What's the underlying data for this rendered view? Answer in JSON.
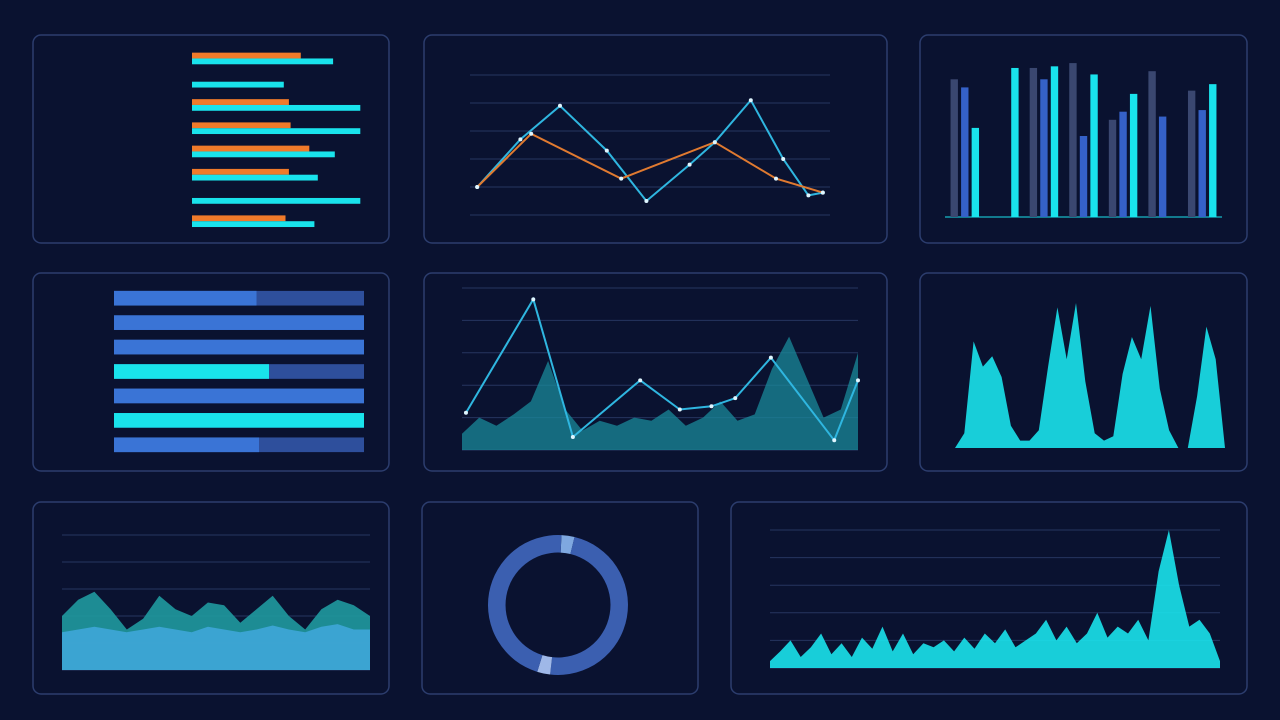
{
  "chart_data": [
    {
      "type": "bar",
      "horizontal": true,
      "xlim": [
        0,
        100
      ],
      "series": [
        {
          "color": "#f07a2a",
          "values": [
            64,
            0,
            57,
            58,
            69,
            57,
            0,
            55
          ]
        },
        {
          "color": "#19e3ec",
          "values": [
            83,
            54,
            99,
            99,
            84,
            74,
            99,
            72
          ]
        }
      ]
    },
    {
      "type": "line",
      "xlim": [
        0,
        100
      ],
      "ylim": [
        0,
        5
      ],
      "grid": true,
      "series": [
        {
          "color": "#2fb6e0",
          "x": [
            2,
            14,
            25,
            38,
            49,
            61,
            68,
            78,
            87,
            94,
            98
          ],
          "values": [
            1.0,
            2.7,
            3.9,
            2.3,
            0.5,
            1.8,
            2.6,
            4.1,
            2.0,
            0.7,
            0.8
          ]
        },
        {
          "color": "#e07a30",
          "x": [
            2,
            17,
            42,
            68,
            85,
            98
          ],
          "values": [
            1.0,
            2.9,
            1.3,
            2.6,
            1.3,
            0.8
          ]
        }
      ]
    },
    {
      "type": "bar",
      "ylim": [
        0,
        100
      ],
      "series": [
        {
          "color": "#3a4770",
          "values": [
            85,
            0,
            92,
            95,
            60,
            90,
            78
          ]
        },
        {
          "color": "#3561c8",
          "values": [
            80,
            0,
            85,
            50,
            65,
            62,
            66
          ]
        },
        {
          "color": "#19e3ec",
          "values": [
            55,
            92,
            93,
            88,
            76,
            0,
            82
          ]
        }
      ]
    },
    {
      "type": "bar",
      "horizontal": true,
      "xlim": [
        0,
        100
      ],
      "track_color": "#2e4f9c",
      "series": [
        {
          "color": "#3a74d6",
          "values": [
            57,
            100,
            100,
            62,
            100,
            100,
            58
          ],
          "colors": [
            "#3a74d6",
            "#3a74d6",
            "#3a74d6",
            "#19e3ec",
            "#3a74d6",
            "#19e3ec",
            "#3a74d6"
          ]
        }
      ]
    },
    {
      "type": "line",
      "xlim": [
        0,
        100
      ],
      "ylim": [
        0,
        100
      ],
      "grid": true,
      "series": [
        {
          "color": "#1a8a9a",
          "fill": true,
          "values": [
            10,
            20,
            15,
            22,
            30,
            55,
            25,
            12,
            18,
            15,
            20,
            18,
            25,
            15,
            20,
            30,
            18,
            22,
            50,
            70,
            45,
            20,
            25,
            60
          ]
        },
        {
          "color": "#2fb6e0",
          "x": [
            1,
            18,
            28,
            45,
            55,
            63,
            69,
            78,
            94,
            100
          ],
          "values": [
            23,
            93,
            8,
            43,
            25,
            27,
            32,
            57,
            6,
            43
          ]
        }
      ]
    },
    {
      "type": "area",
      "ylim": [
        0,
        100
      ],
      "series": [
        {
          "color": "#19e3ec",
          "values": [
            0,
            10,
            72,
            55,
            62,
            48,
            15,
            5,
            5,
            12,
            55,
            95,
            60,
            98,
            45,
            10,
            5,
            8,
            50,
            75,
            60,
            96,
            40,
            12,
            0,
            0,
            35,
            82,
            60,
            0
          ]
        }
      ]
    },
    {
      "type": "area",
      "ylim": [
        0,
        100
      ],
      "grid": true,
      "series": [
        {
          "color": "#1f9aa0",
          "values": [
            40,
            52,
            58,
            45,
            30,
            38,
            55,
            45,
            40,
            50,
            48,
            35,
            45,
            55,
            40,
            30,
            45,
            52,
            48,
            40
          ]
        },
        {
          "color": "#3fa6d8",
          "values": [
            28,
            30,
            32,
            30,
            28,
            30,
            32,
            30,
            28,
            32,
            30,
            28,
            30,
            33,
            30,
            28,
            32,
            34,
            30,
            30
          ]
        }
      ]
    },
    {
      "type": "pie",
      "hole": 0.75,
      "values": [
        3,
        48,
        3,
        46
      ],
      "colors": [
        "#7fa8e0",
        "#3b5fb0",
        "#9fb8e8",
        "#3b5fb0"
      ]
    },
    {
      "type": "area",
      "ylim": [
        0,
        100
      ],
      "grid": true,
      "series": [
        {
          "color": "#19e3ec",
          "values": [
            5,
            12,
            20,
            8,
            15,
            25,
            10,
            18,
            8,
            22,
            14,
            30,
            12,
            25,
            10,
            18,
            15,
            20,
            12,
            22,
            14,
            25,
            18,
            28,
            15,
            20,
            25,
            35,
            20,
            30,
            18,
            25,
            40,
            22,
            30,
            25,
            35,
            20,
            70,
            100,
            60,
            30,
            35,
            25,
            5
          ]
        }
      ]
    }
  ]
}
